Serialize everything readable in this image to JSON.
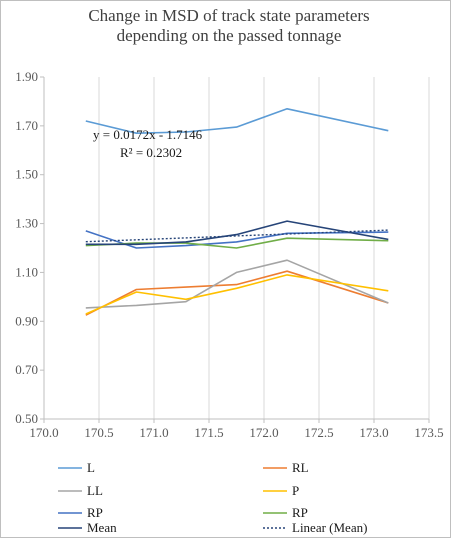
{
  "chart_data": {
    "type": "line",
    "title_lines": [
      "Change in MSD of track state parameters",
      "depending on the passed tonnage"
    ],
    "xlabel": "",
    "ylabel": "",
    "xlim": [
      170.0,
      173.5
    ],
    "ylim": [
      0.5,
      1.9
    ],
    "x_ticks": [
      "170.0",
      "170.5",
      "171.0",
      "171.5",
      "172.0",
      "172.5",
      "173.0",
      "173.5"
    ],
    "y_ticks": [
      "0.50",
      "0.70",
      "0.90",
      "1.10",
      "1.30",
      "1.50",
      "1.70",
      "1.90"
    ],
    "x_tick_values": [
      170.0,
      170.5,
      171.0,
      171.5,
      172.0,
      172.5,
      173.0,
      173.5
    ],
    "y_tick_values": [
      0.5,
      0.7,
      0.9,
      1.1,
      1.3,
      1.5,
      1.7,
      1.9
    ],
    "grid": "vertical",
    "legend_position": "bottom",
    "x": [
      170.38,
      170.84,
      171.29,
      171.75,
      172.21,
      173.13
    ],
    "series": [
      {
        "name": "L",
        "color": "#5b9bd5",
        "style": "solid",
        "values": [
          1.72,
          1.67,
          1.675,
          1.695,
          1.77,
          1.68
        ]
      },
      {
        "name": "RL",
        "color": "#ed7d31",
        "style": "solid",
        "values": [
          0.925,
          1.03,
          1.04,
          1.05,
          1.105,
          0.975
        ]
      },
      {
        "name": "LL",
        "color": "#a5a5a5",
        "style": "solid",
        "values": [
          0.955,
          0.965,
          0.98,
          1.1,
          1.15,
          0.975
        ]
      },
      {
        "name": "P",
        "color": "#ffc000",
        "style": "solid",
        "values": [
          0.93,
          1.02,
          0.99,
          1.035,
          1.09,
          1.025
        ]
      },
      {
        "name": "RP",
        "color": "#4472c4",
        "style": "solid",
        "values": [
          1.27,
          1.2,
          1.21,
          1.225,
          1.26,
          1.265
        ]
      },
      {
        "name": "RP",
        "color": "#70ad47",
        "style": "solid",
        "values": [
          1.21,
          1.22,
          1.22,
          1.2,
          1.24,
          1.23
        ]
      },
      {
        "name": "Mean",
        "color": "#264478",
        "style": "solid",
        "values": [
          1.215,
          1.215,
          1.225,
          1.255,
          1.31,
          1.235
        ]
      },
      {
        "name": "Linear (Mean)",
        "color": "#264478",
        "style": "dotted",
        "values": [
          1.2258,
          1.2337,
          1.2414,
          1.2494,
          1.2573,
          1.2731
        ]
      }
    ],
    "annotations": [
      "y = 0.0172x - 1.7146",
      "R² = 0.2302"
    ]
  }
}
